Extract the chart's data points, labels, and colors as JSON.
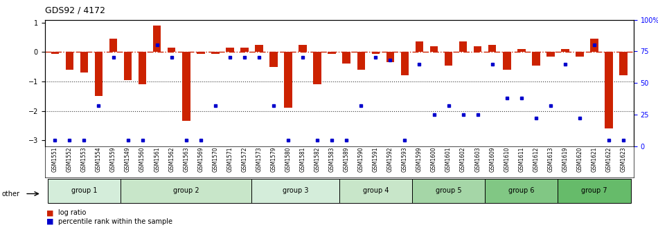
{
  "title": "GDS92 / 4172",
  "samples": [
    "GSM1551",
    "GSM1552",
    "GSM1553",
    "GSM1554",
    "GSM1559",
    "GSM1549",
    "GSM1560",
    "GSM1561",
    "GSM1562",
    "GSM1563",
    "GSM1569",
    "GSM1570",
    "GSM1571",
    "GSM1572",
    "GSM1573",
    "GSM1579",
    "GSM1580",
    "GSM1581",
    "GSM1582",
    "GSM1583",
    "GSM1589",
    "GSM1590",
    "GSM1591",
    "GSM1592",
    "GSM1593",
    "GSM1599",
    "GSM1600",
    "GSM1601",
    "GSM1602",
    "GSM1603",
    "GSM1609",
    "GSM1610",
    "GSM1611",
    "GSM1612",
    "GSM1613",
    "GSM1619",
    "GSM1620",
    "GSM1621",
    "GSM1622",
    "GSM1623"
  ],
  "log_ratio": [
    -0.05,
    -0.6,
    -0.7,
    -1.5,
    0.45,
    -0.95,
    -1.1,
    0.9,
    0.15,
    -2.35,
    -0.05,
    -0.05,
    0.15,
    0.15,
    0.25,
    -0.5,
    -1.9,
    0.25,
    -1.1,
    -0.05,
    -0.4,
    -0.6,
    -0.05,
    -0.35,
    -0.8,
    0.35,
    0.2,
    -0.45,
    0.35,
    0.2,
    0.25,
    -0.6,
    0.1,
    -0.45,
    -0.15,
    0.1,
    -0.15,
    0.45,
    -2.6,
    -0.8
  ],
  "percentile": [
    5,
    5,
    5,
    32,
    70,
    5,
    5,
    80,
    70,
    5,
    5,
    32,
    70,
    70,
    70,
    32,
    5,
    70,
    5,
    5,
    5,
    32,
    70,
    68,
    5,
    65,
    25,
    32,
    25,
    25,
    65,
    38,
    38,
    22,
    32,
    65,
    22,
    80,
    5,
    5
  ],
  "groups": [
    {
      "name": "group 1",
      "start": 0,
      "end": 4,
      "color": "#d4edda"
    },
    {
      "name": "group 2",
      "start": 5,
      "end": 13,
      "color": "#c8e6c9"
    },
    {
      "name": "group 3",
      "start": 14,
      "end": 19,
      "color": "#d4edda"
    },
    {
      "name": "group 4",
      "start": 20,
      "end": 24,
      "color": "#c8e6c9"
    },
    {
      "name": "group 5",
      "start": 25,
      "end": 29,
      "color": "#a5d6a7"
    },
    {
      "name": "group 6",
      "start": 30,
      "end": 34,
      "color": "#81c784"
    },
    {
      "name": "group 7",
      "start": 35,
      "end": 39,
      "color": "#66bb6a"
    }
  ],
  "bar_color": "#cc2200",
  "dot_color": "#0000cc",
  "ylim": [
    -3.2,
    1.1
  ],
  "yticks": [
    1,
    0,
    -1,
    -2,
    -3
  ],
  "right_yticks": [
    100,
    75,
    50,
    25,
    0
  ],
  "right_yticklabels": [
    "100%",
    "75",
    "50",
    "25",
    "0"
  ],
  "zero_line_color": "#cc2200",
  "grid_line_color": "#333333",
  "background_color": "#ffffff"
}
